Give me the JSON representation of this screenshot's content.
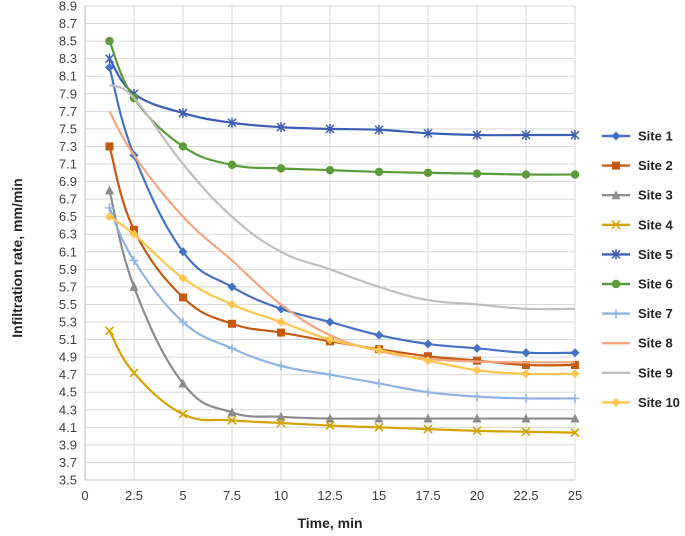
{
  "chart_data": {
    "type": "line",
    "title": "",
    "xlabel": "Time, min",
    "ylabel": "Infiltration rate, mm/min",
    "xlim": [
      0,
      25
    ],
    "ylim": [
      3.5,
      8.9
    ],
    "x_ticks": [
      "0",
      "2.5",
      "5",
      "7.5",
      "10",
      "12.5",
      "15",
      "17.5",
      "20",
      "22.5",
      "25"
    ],
    "y_ticks": [
      "3.5",
      "3.7",
      "3.9",
      "4.1",
      "4.3",
      "4.5",
      "4.7",
      "4.9",
      "5.1",
      "5.3",
      "5.5",
      "5.7",
      "5.9",
      "6.1",
      "6.3",
      "6.5",
      "6.7",
      "6.9",
      "7.1",
      "7.3",
      "7.5",
      "7.7",
      "7.9",
      "8.1",
      "8.3",
      "8.5",
      "8.7",
      "8.9"
    ],
    "grid": true,
    "legend_position": "right",
    "x": [
      1.25,
      2.5,
      5,
      7.5,
      10,
      12.5,
      15,
      17.5,
      20,
      22.5,
      25
    ],
    "series": [
      {
        "name": "Site 1",
        "color": "#4472c4",
        "marker": "diamond",
        "values": [
          8.2,
          7.2,
          6.1,
          5.7,
          5.45,
          5.3,
          5.15,
          5.05,
          5.0,
          4.95,
          4.95
        ]
      },
      {
        "name": "Site 2",
        "color": "#c55a11",
        "marker": "square",
        "values": [
          7.3,
          6.35,
          5.58,
          5.28,
          5.18,
          5.08,
          4.99,
          4.91,
          4.86,
          4.81,
          4.81
        ]
      },
      {
        "name": "Site 3",
        "color": "#8c8c8c",
        "marker": "triangle",
        "values": [
          6.8,
          5.7,
          4.6,
          4.27,
          4.22,
          4.2,
          4.2,
          4.2,
          4.2,
          4.2,
          4.2
        ]
      },
      {
        "name": "Site 4",
        "color": "#d4a300",
        "marker": "x",
        "values": [
          5.2,
          4.72,
          4.25,
          4.18,
          4.15,
          4.12,
          4.1,
          4.08,
          4.06,
          4.05,
          4.04
        ]
      },
      {
        "name": "Site 5",
        "color": "#3d5fb5",
        "marker": "star",
        "values": [
          8.3,
          7.9,
          7.68,
          7.57,
          7.52,
          7.5,
          7.49,
          7.45,
          7.43,
          7.43,
          7.43
        ]
      },
      {
        "name": "Site 6",
        "color": "#5b9c3a",
        "marker": "circle",
        "values": [
          8.5,
          7.85,
          7.3,
          7.09,
          7.05,
          7.03,
          7.01,
          7.0,
          6.99,
          6.98,
          6.98
        ]
      },
      {
        "name": "Site 7",
        "color": "#8fb4e3",
        "marker": "plus",
        "values": [
          6.6,
          6.0,
          5.3,
          5.0,
          4.8,
          4.7,
          4.6,
          4.5,
          4.45,
          4.43,
          4.43
        ]
      },
      {
        "name": "Site 8",
        "color": "#f4a582",
        "marker": "none",
        "values": [
          7.7,
          7.2,
          6.5,
          6.0,
          5.5,
          5.15,
          4.97,
          4.88,
          4.85,
          4.84,
          4.84
        ]
      },
      {
        "name": "Site 9",
        "color": "#bfbfbf",
        "marker": "none",
        "values": [
          8.0,
          7.85,
          7.1,
          6.5,
          6.1,
          5.9,
          5.7,
          5.55,
          5.5,
          5.45,
          5.45
        ]
      },
      {
        "name": "Site 10",
        "color": "#ffc54d",
        "marker": "diamond",
        "values": [
          6.5,
          6.3,
          5.8,
          5.5,
          5.3,
          5.1,
          4.98,
          4.86,
          4.75,
          4.71,
          4.71
        ]
      }
    ]
  }
}
